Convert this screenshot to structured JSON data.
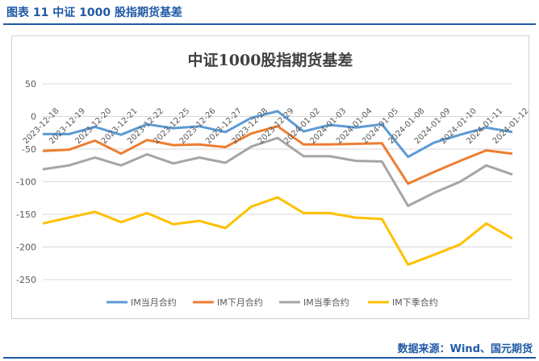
{
  "header": {
    "caption": "图表 11  中证 1000 股指期货基差"
  },
  "footer": {
    "source": "数据来源：Wind、国元期货"
  },
  "colors": {
    "accent": "#1f5aa6"
  },
  "chart_data": {
    "type": "line",
    "title": "中证1000股指期货基差",
    "xlabel": "",
    "ylabel": "",
    "ylim": [
      -250,
      50
    ],
    "yticks": [
      50,
      0,
      -50,
      -100,
      -150,
      -200,
      -250
    ],
    "grid": true,
    "legend_position": "bottom",
    "categories": [
      "2023-12-18",
      "2023-12-19",
      "2023-12-20",
      "2023-12-21",
      "2023-12-22",
      "2023-12-25",
      "2023-12-26",
      "2023-12-27",
      "2023-12-28",
      "2023-12-29",
      "2024-01-02",
      "2024-01-03",
      "2024-01-04",
      "2024-01-05",
      "2024-01-08",
      "2024-01-09",
      "2024-01-10",
      "2024-01-11",
      "2024-01-12"
    ],
    "series": [
      {
        "name": "IM当月合约",
        "color": "#5b9bd5",
        "values": [
          -27,
          -27,
          -16,
          -28,
          -12,
          -18,
          -15,
          -24,
          -2,
          8,
          -23,
          -13,
          -17,
          -12,
          -62,
          -40,
          -28,
          -17,
          -24
        ]
      },
      {
        "name": "IM下月合约",
        "color": "#ed7d31",
        "values": [
          -53,
          -51,
          -37,
          -57,
          -36,
          -44,
          -43,
          -47,
          -26,
          -15,
          -43,
          -43,
          -42,
          -41,
          -103,
          -85,
          -68,
          -52,
          -57
        ]
      },
      {
        "name": "IM当季合约",
        "color": "#a5a5a5",
        "values": [
          -81,
          -75,
          -63,
          -75,
          -58,
          -72,
          -63,
          -71,
          -46,
          -33,
          -61,
          -61,
          -68,
          -69,
          -137,
          -117,
          -100,
          -75,
          -89
        ]
      },
      {
        "name": "IM下季合约",
        "color": "#ffc000",
        "values": [
          -164,
          -155,
          -146,
          -162,
          -148,
          -165,
          -160,
          -171,
          -138,
          -124,
          -148,
          -148,
          -155,
          -157,
          -227,
          -212,
          -196,
          -164,
          -187
        ]
      }
    ]
  }
}
